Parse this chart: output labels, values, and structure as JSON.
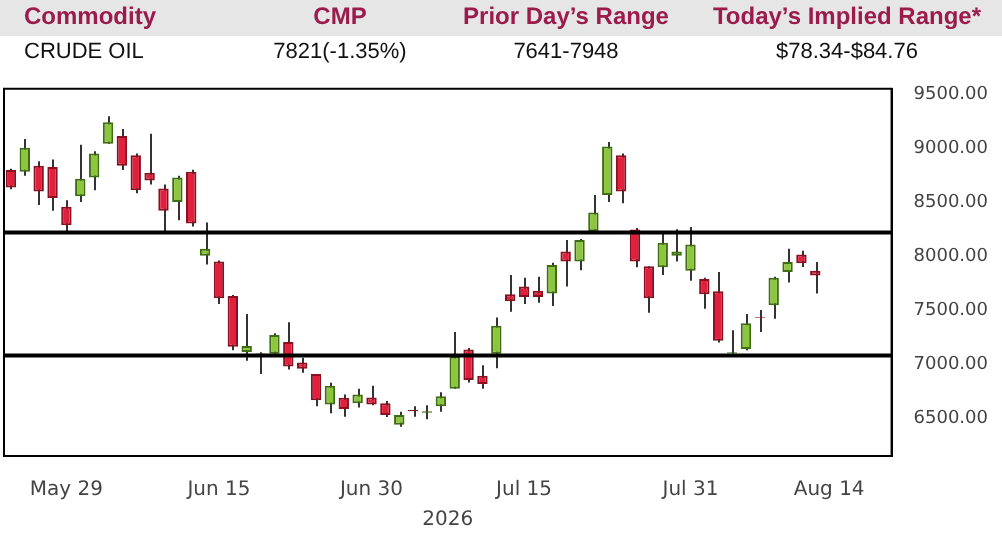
{
  "chart_data": {
    "type": "candlestick",
    "xlabel": "2026",
    "annotations": [
      "Commodity",
      "CMP",
      "Prior Day’s Range",
      "Today’s Implied Range*",
      "CRUDE OIL",
      "7821(-1.35%)",
      "7641-7948",
      "$78.34-$84.76"
    ],
    "categories": [
      null,
      null,
      null,
      null,
      "May 29",
      null,
      null,
      null,
      null,
      null,
      null,
      null,
      null,
      null,
      null,
      "Jun 15",
      null,
      null,
      null,
      null,
      null,
      null,
      null,
      null,
      null,
      null,
      "Jun 30",
      null,
      null,
      null,
      null,
      null,
      null,
      null,
      null,
      null,
      null,
      "Jul 15",
      null,
      null,
      null,
      null,
      null,
      null,
      null,
      null,
      null,
      null,
      null,
      "Jul 31",
      null,
      null,
      null,
      null,
      null,
      null,
      null,
      null,
      null,
      "Aug 14",
      null,
      null,
      null,
      null
    ],
    "ohlc": [
      [
        8798,
        8810,
        8620,
        8636
      ],
      [
        8782,
        9085,
        8745,
        9004
      ],
      [
        8837,
        8879,
        8474,
        8599
      ],
      [
        8826,
        8895,
        8421,
        8539
      ],
      [
        8458,
        8518,
        8205,
        8286
      ],
      [
        8555,
        9031,
        8502,
        8717
      ],
      [
        8729,
        8972,
        8610,
        8950
      ],
      [
        9041,
        9295,
        9041,
        9241
      ],
      [
        9112,
        9177,
        8798,
        8837
      ],
      [
        8934,
        8950,
        8583,
        8610
      ],
      [
        8772,
        9134,
        8664,
        8701
      ],
      [
        8626,
        8664,
        8221,
        8421
      ],
      [
        8502,
        8745,
        8332,
        8728
      ],
      [
        8782,
        8800,
        8275,
        8302
      ],
      [
        8004,
        8312,
        7923,
        8069
      ],
      [
        7950,
        7960,
        7557,
        7611
      ],
      [
        7632,
        7640,
        7130,
        7162
      ],
      [
        7113,
        7465,
        7032,
        7168
      ],
      [
        7100,
        7110,
        6909,
        7095
      ],
      [
        7097,
        7287,
        7097,
        7270
      ],
      [
        7206,
        7389,
        6950,
        6979
      ],
      [
        7016,
        7060,
        6920,
        6958
      ],
      [
        6909,
        6909,
        6611,
        6666
      ],
      [
        6627,
        6828,
        6546,
        6801
      ],
      [
        6690,
        6720,
        6514,
        6585
      ],
      [
        6639,
        6773,
        6600,
        6720
      ],
      [
        6692,
        6801,
        6620,
        6627
      ],
      [
        6639,
        6660,
        6510,
        6530
      ],
      [
        6440,
        6560,
        6420,
        6530
      ],
      [
        6575,
        6611,
        6514,
        6565
      ],
      [
        6550,
        6620,
        6490,
        6565
      ],
      [
        6611,
        6740,
        6560,
        6703
      ],
      [
        6773,
        7298,
        6773,
        7071
      ],
      [
        7136,
        7150,
        6830,
        6854
      ],
      [
        6893,
        6990,
        6773,
        6817
      ],
      [
        7097,
        7433,
        6963,
        7356
      ],
      [
        7648,
        7826,
        7486,
        7583
      ],
      [
        7719,
        7800,
        7557,
        7622
      ],
      [
        7680,
        7810,
        7570,
        7622
      ],
      [
        7654,
        7940,
        7540,
        7918
      ],
      [
        8043,
        8150,
        7719,
        7951
      ],
      [
        7951,
        8160,
        7870,
        8150
      ],
      [
        8231,
        8567,
        8231,
        8404
      ],
      [
        8567,
        9057,
        8502,
        9015
      ],
      [
        8934,
        8950,
        8490,
        8599
      ],
      [
        8248,
        8260,
        7897,
        7951
      ],
      [
        7907,
        7907,
        7476,
        7611
      ],
      [
        7897,
        8221,
        7826,
        8124
      ],
      [
        8004,
        8250,
        7950,
        8043
      ],
      [
        7865,
        8270,
        7773,
        8108
      ],
      [
        7789,
        7800,
        7513,
        7648
      ],
      [
        7676,
        7854,
        7200,
        7217
      ],
      [
        7100,
        7314,
        7097,
        7110
      ],
      [
        7141,
        7465,
        7130,
        7379
      ],
      [
        7440,
        7502,
        7298,
        7430
      ],
      [
        7546,
        7810,
        7421,
        7800
      ],
      [
        7854,
        8069,
        7756,
        7946
      ],
      [
        8016,
        8050,
        7900,
        7935
      ],
      [
        7865,
        7946,
        7654,
        7821
      ],
      null,
      null,
      null,
      null,
      null
    ],
    "ylim": [
      6150,
      9550
    ],
    "yticks": [
      {
        "value": 6500,
        "label": "6500.00"
      },
      {
        "value": 7000,
        "label": "7000.00"
      },
      {
        "value": 7500,
        "label": "7500.00"
      },
      {
        "value": 8000,
        "label": "8000.00"
      },
      {
        "value": 8500,
        "label": "8500.00"
      },
      {
        "value": 9000,
        "label": "9000.00"
      },
      {
        "value": 9500,
        "label": "9500.00"
      }
    ],
    "ref_lines": [
      {
        "axis": "y",
        "value": 7080,
        "color": "#000000"
      },
      {
        "axis": "y",
        "value": 8220,
        "color": "#000000"
      }
    ],
    "grid": false,
    "legend": false
  }
}
